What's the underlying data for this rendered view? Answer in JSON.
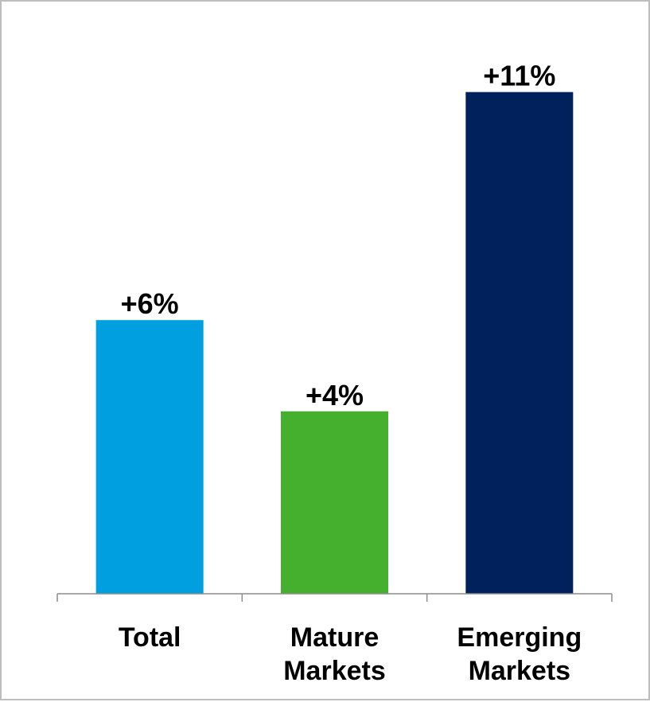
{
  "chart_data": {
    "type": "bar",
    "title": "",
    "xlabel": "",
    "ylabel": "",
    "categories": [
      [
        "Total"
      ],
      [
        "Mature",
        "Markets"
      ],
      [
        "Emerging",
        "Markets"
      ]
    ],
    "values": [
      6,
      4,
      11
    ],
    "data_labels": [
      "+6%",
      "+4%",
      "+11%"
    ],
    "colors": [
      "#009fdf",
      "#45b02d",
      "#00215c"
    ],
    "ylim": [
      0,
      11.5
    ],
    "grid": false,
    "legend": "none"
  }
}
